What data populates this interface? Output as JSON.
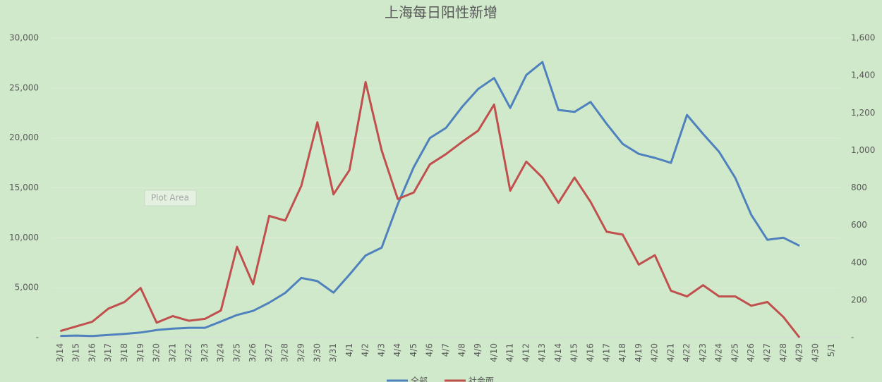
{
  "chart_data": {
    "type": "line",
    "title": "上海每日阳性新增",
    "annotation": "Plot Area",
    "categories": [
      "3/14",
      "3/15",
      "3/16",
      "3/17",
      "3/18",
      "3/19",
      "3/20",
      "3/21",
      "3/22",
      "3/23",
      "3/24",
      "3/25",
      "3/26",
      "3/27",
      "3/28",
      "3/29",
      "3/30",
      "3/31",
      "4/1",
      "4/2",
      "4/3",
      "4/4",
      "4/5",
      "4/6",
      "4/7",
      "4/8",
      "4/9",
      "4/10",
      "4/11",
      "4/12",
      "4/13",
      "4/14",
      "4/15",
      "4/16",
      "4/17",
      "4/18",
      "4/19",
      "4/20",
      "4/21",
      "4/22",
      "4/23",
      "4/24",
      "4/25",
      "4/26",
      "4/27",
      "4/28",
      "4/29",
      "4/30",
      "5/1"
    ],
    "series": [
      {
        "name": "全部",
        "color": "#4f81bd",
        "axis": "y",
        "values": [
          169,
          202,
          158,
          260,
          374,
          509,
          758,
          896,
          981,
          983,
          1609,
          2269,
          2678,
          3500,
          4477,
          5982,
          5653,
          4502,
          6311,
          8226,
          9006,
          13354,
          17077,
          19982,
          21000,
          23100,
          24900,
          26000,
          23000,
          26300,
          27600,
          22800,
          22600,
          23600,
          21400,
          19400,
          18400,
          18000,
          17500,
          22300,
          20400,
          18600,
          16000,
          12300,
          9800,
          10000,
          9200,
          null,
          null
        ]
      },
      {
        "name": "社会面",
        "color": "#c0504d",
        "axis": "y2",
        "values": [
          35,
          60,
          85,
          155,
          190,
          265,
          80,
          115,
          90,
          100,
          145,
          485,
          285,
          650,
          625,
          810,
          1150,
          765,
          895,
          1365,
          1000,
          740,
          775,
          925,
          980,
          1045,
          1105,
          1245,
          785,
          940,
          855,
          720,
          855,
          725,
          565,
          550,
          390,
          440,
          250,
          220,
          280,
          220,
          220,
          170,
          190,
          110,
          0,
          null,
          null
        ]
      }
    ],
    "ylim": [
      0,
      30000
    ],
    "yticks": [
      {
        "value": 0,
        "label": "-"
      },
      {
        "value": 5000,
        "label": "5,000"
      },
      {
        "value": 10000,
        "label": "10,000"
      },
      {
        "value": 15000,
        "label": "15,000"
      },
      {
        "value": 20000,
        "label": "20,000"
      },
      {
        "value": 25000,
        "label": "25,000"
      },
      {
        "value": 30000,
        "label": "30,000"
      }
    ],
    "y2lim": [
      0,
      1600
    ],
    "y2ticks": [
      {
        "value": 0,
        "label": "-"
      },
      200,
      400,
      600,
      800,
      {
        "value": 1000,
        "label": "1,000"
      },
      {
        "value": 1200,
        "label": "1,200"
      },
      {
        "value": 1400,
        "label": "1,400"
      },
      {
        "value": 1600,
        "label": "1,600"
      }
    ],
    "grid": true,
    "legend": "bottom"
  }
}
